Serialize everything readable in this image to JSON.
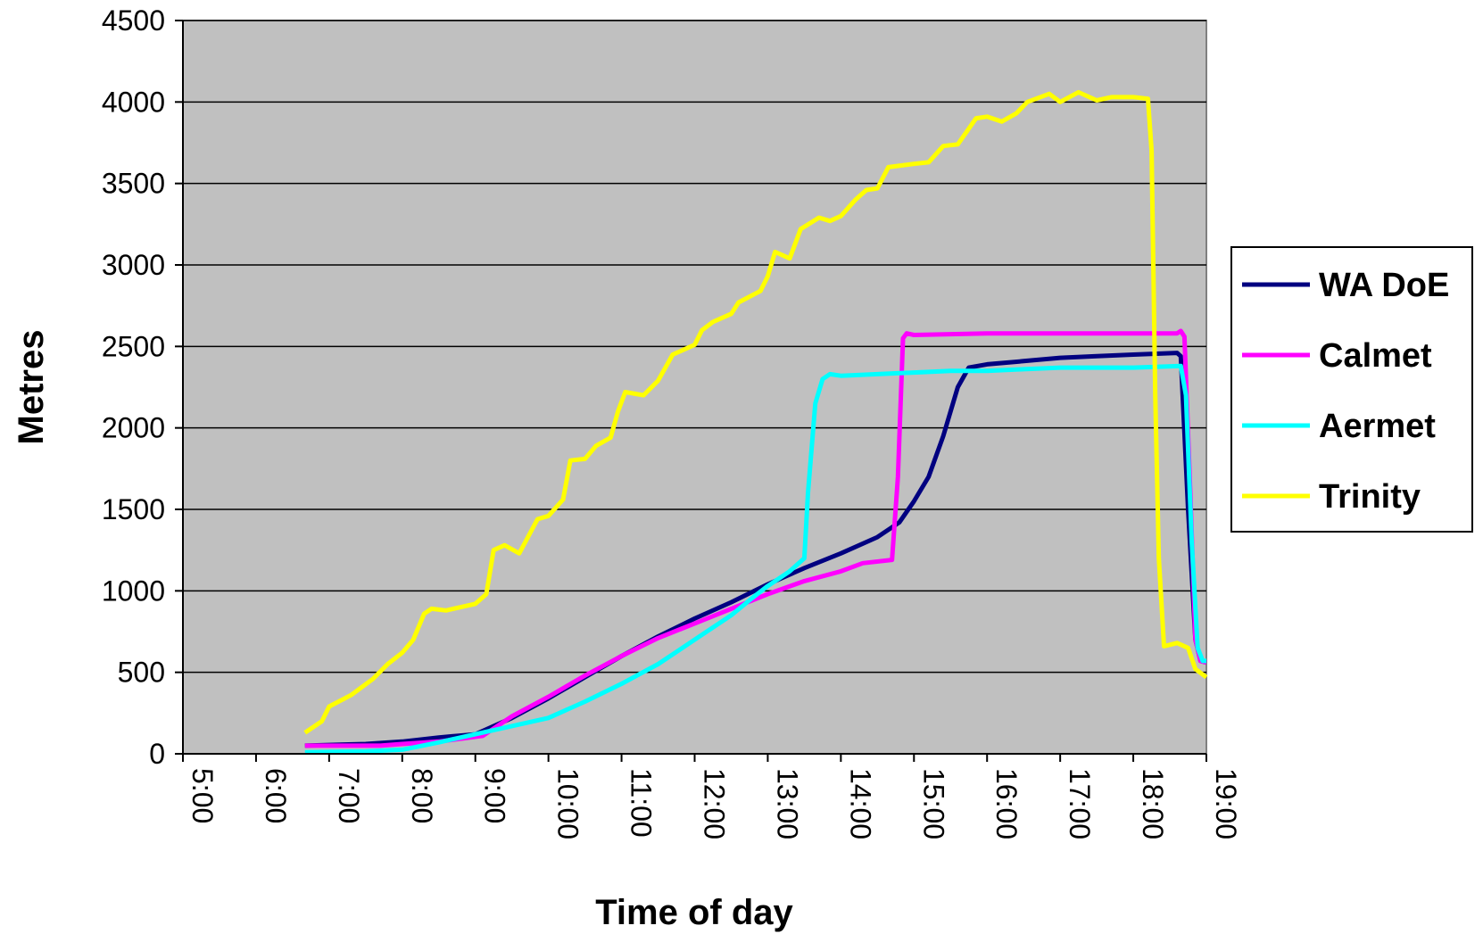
{
  "chart_data": {
    "type": "line",
    "xlabel": "Time of day",
    "ylabel": "Metres",
    "xlim": [
      5,
      19
    ],
    "ylim": [
      0,
      4500
    ],
    "x_ticks": [
      {
        "value": 5,
        "label": "5:00"
      },
      {
        "value": 6,
        "label": "6:00"
      },
      {
        "value": 7,
        "label": "7:00"
      },
      {
        "value": 8,
        "label": "8:00"
      },
      {
        "value": 9,
        "label": "9:00"
      },
      {
        "value": 10,
        "label": "10:00"
      },
      {
        "value": 11,
        "label": "11:00"
      },
      {
        "value": 12,
        "label": "12:00"
      },
      {
        "value": 13,
        "label": "13:00"
      },
      {
        "value": 14,
        "label": "14:00"
      },
      {
        "value": 15,
        "label": "15:00"
      },
      {
        "value": 16,
        "label": "16:00"
      },
      {
        "value": 17,
        "label": "17:00"
      },
      {
        "value": 18,
        "label": "18:00"
      },
      {
        "value": 19,
        "label": "19:00"
      }
    ],
    "y_ticks": [
      {
        "value": 0,
        "label": "0"
      },
      {
        "value": 500,
        "label": "500"
      },
      {
        "value": 1000,
        "label": "1000"
      },
      {
        "value": 1500,
        "label": "1500"
      },
      {
        "value": 2000,
        "label": "2000"
      },
      {
        "value": 2500,
        "label": "2500"
      },
      {
        "value": 3000,
        "label": "3000"
      },
      {
        "value": 3500,
        "label": "3500"
      },
      {
        "value": 4000,
        "label": "4000"
      },
      {
        "value": 4500,
        "label": "4500"
      }
    ],
    "grid": "horizontal",
    "plot_background": "#c0c0c0",
    "legend_position": "right",
    "series": [
      {
        "name": "WA DoE",
        "color": "#000080",
        "points": [
          [
            6.67,
            50
          ],
          [
            7.5,
            60
          ],
          [
            8.0,
            75
          ],
          [
            8.5,
            100
          ],
          [
            9.0,
            120
          ],
          [
            9.5,
            220
          ],
          [
            10.0,
            340
          ],
          [
            10.5,
            470
          ],
          [
            11.0,
            600
          ],
          [
            11.5,
            720
          ],
          [
            12.0,
            830
          ],
          [
            12.5,
            930
          ],
          [
            13.0,
            1040
          ],
          [
            13.5,
            1140
          ],
          [
            14.0,
            1230
          ],
          [
            14.5,
            1330
          ],
          [
            14.8,
            1420
          ],
          [
            15.0,
            1550
          ],
          [
            15.2,
            1700
          ],
          [
            15.4,
            1950
          ],
          [
            15.6,
            2250
          ],
          [
            15.75,
            2370
          ],
          [
            16.0,
            2390
          ],
          [
            16.5,
            2410
          ],
          [
            17.0,
            2430
          ],
          [
            17.5,
            2440
          ],
          [
            18.0,
            2450
          ],
          [
            18.6,
            2460
          ],
          [
            18.65,
            2440
          ],
          [
            18.75,
            1500
          ],
          [
            18.85,
            700
          ],
          [
            18.92,
            570
          ],
          [
            19.0,
            560
          ]
        ]
      },
      {
        "name": "Calmet",
        "color": "#ff00ff",
        "points": [
          [
            6.67,
            50
          ],
          [
            7.7,
            50
          ],
          [
            8.0,
            60
          ],
          [
            8.5,
            75
          ],
          [
            9.1,
            110
          ],
          [
            9.5,
            230
          ],
          [
            10.0,
            350
          ],
          [
            10.5,
            480
          ],
          [
            11.0,
            600
          ],
          [
            11.5,
            710
          ],
          [
            12.0,
            800
          ],
          [
            12.5,
            890
          ],
          [
            13.0,
            980
          ],
          [
            13.5,
            1060
          ],
          [
            14.0,
            1120
          ],
          [
            14.3,
            1170
          ],
          [
            14.7,
            1190
          ],
          [
            14.78,
            1700
          ],
          [
            14.85,
            2550
          ],
          [
            14.9,
            2580
          ],
          [
            15.0,
            2570
          ],
          [
            16.0,
            2580
          ],
          [
            17.0,
            2580
          ],
          [
            18.0,
            2580
          ],
          [
            18.6,
            2580
          ],
          [
            18.65,
            2595
          ],
          [
            18.7,
            2560
          ],
          [
            18.78,
            1600
          ],
          [
            18.85,
            700
          ],
          [
            18.92,
            570
          ],
          [
            19.0,
            560
          ]
        ]
      },
      {
        "name": "Aermet",
        "color": "#00ffff",
        "points": [
          [
            6.67,
            10
          ],
          [
            7.5,
            15
          ],
          [
            8.0,
            25
          ],
          [
            8.5,
            70
          ],
          [
            9.0,
            120
          ],
          [
            9.5,
            170
          ],
          [
            10.0,
            220
          ],
          [
            10.5,
            320
          ],
          [
            11.0,
            430
          ],
          [
            11.5,
            550
          ],
          [
            12.0,
            700
          ],
          [
            12.5,
            850
          ],
          [
            12.8,
            960
          ],
          [
            13.0,
            1030
          ],
          [
            13.3,
            1120
          ],
          [
            13.5,
            1200
          ],
          [
            13.55,
            1600
          ],
          [
            13.65,
            2150
          ],
          [
            13.75,
            2300
          ],
          [
            13.85,
            2330
          ],
          [
            14.0,
            2320
          ],
          [
            14.5,
            2330
          ],
          [
            15.0,
            2340
          ],
          [
            15.5,
            2350
          ],
          [
            16.0,
            2350
          ],
          [
            16.5,
            2360
          ],
          [
            17.0,
            2370
          ],
          [
            17.5,
            2370
          ],
          [
            18.0,
            2370
          ],
          [
            18.65,
            2380
          ],
          [
            18.72,
            2200
          ],
          [
            18.8,
            1300
          ],
          [
            18.88,
            650
          ],
          [
            18.95,
            570
          ],
          [
            19.0,
            570
          ]
        ]
      },
      {
        "name": "Trinity",
        "color": "#ffff00",
        "points": [
          [
            6.67,
            130
          ],
          [
            6.9,
            200
          ],
          [
            7.0,
            290
          ],
          [
            7.3,
            360
          ],
          [
            7.6,
            460
          ],
          [
            7.8,
            550
          ],
          [
            8.0,
            620
          ],
          [
            8.15,
            700
          ],
          [
            8.3,
            860
          ],
          [
            8.4,
            890
          ],
          [
            8.6,
            880
          ],
          [
            9.0,
            920
          ],
          [
            9.15,
            980
          ],
          [
            9.25,
            1250
          ],
          [
            9.4,
            1280
          ],
          [
            9.6,
            1230
          ],
          [
            9.85,
            1440
          ],
          [
            10.0,
            1460
          ],
          [
            10.2,
            1560
          ],
          [
            10.3,
            1800
          ],
          [
            10.5,
            1810
          ],
          [
            10.65,
            1890
          ],
          [
            10.85,
            1940
          ],
          [
            10.95,
            2100
          ],
          [
            11.05,
            2220
          ],
          [
            11.3,
            2200
          ],
          [
            11.5,
            2290
          ],
          [
            11.7,
            2450
          ],
          [
            12.0,
            2510
          ],
          [
            12.1,
            2600
          ],
          [
            12.25,
            2650
          ],
          [
            12.5,
            2700
          ],
          [
            12.6,
            2770
          ],
          [
            12.9,
            2840
          ],
          [
            13.0,
            2930
          ],
          [
            13.1,
            3080
          ],
          [
            13.3,
            3040
          ],
          [
            13.45,
            3220
          ],
          [
            13.7,
            3290
          ],
          [
            13.85,
            3270
          ],
          [
            14.0,
            3300
          ],
          [
            14.2,
            3400
          ],
          [
            14.35,
            3460
          ],
          [
            14.5,
            3470
          ],
          [
            14.65,
            3600
          ],
          [
            15.0,
            3620
          ],
          [
            15.2,
            3630
          ],
          [
            15.4,
            3730
          ],
          [
            15.6,
            3740
          ],
          [
            15.85,
            3900
          ],
          [
            16.0,
            3910
          ],
          [
            16.2,
            3880
          ],
          [
            16.4,
            3930
          ],
          [
            16.55,
            4000
          ],
          [
            16.85,
            4050
          ],
          [
            17.0,
            4000
          ],
          [
            17.25,
            4060
          ],
          [
            17.5,
            4010
          ],
          [
            17.7,
            4030
          ],
          [
            18.0,
            4030
          ],
          [
            18.2,
            4020
          ],
          [
            18.25,
            3700
          ],
          [
            18.3,
            2200
          ],
          [
            18.35,
            1200
          ],
          [
            18.42,
            660
          ],
          [
            18.6,
            680
          ],
          [
            18.75,
            650
          ],
          [
            18.85,
            520
          ],
          [
            19.0,
            470
          ]
        ]
      }
    ]
  }
}
